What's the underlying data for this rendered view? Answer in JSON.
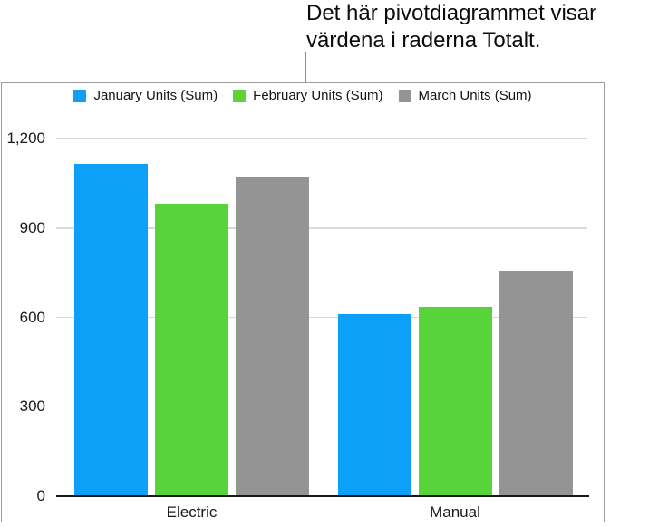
{
  "callout": {
    "line1": "Det här pivotdiagrammet visar",
    "line2": "värdena i raderna Totalt."
  },
  "chart_data": {
    "type": "bar",
    "title": "",
    "categories": [
      "Electric",
      "Manual"
    ],
    "series": [
      {
        "name": "January Units (Sum)",
        "color": "#0ca0f9",
        "values": [
          1115,
          610
        ]
      },
      {
        "name": "February Units (Sum)",
        "color": "#58d339",
        "values": [
          980,
          635
        ]
      },
      {
        "name": "March Units (Sum)",
        "color": "#949494",
        "values": [
          1070,
          755
        ]
      }
    ],
    "ylim": [
      0,
      1200
    ],
    "yticks": [
      0,
      300,
      600,
      900,
      1200
    ],
    "ytick_labels": [
      "0",
      "300",
      "600",
      "900",
      "1,200"
    ],
    "grid": true,
    "legend_position": "top"
  },
  "colors": {
    "axis_line": "#181818",
    "gridline": "#d9d9d9",
    "panel_border": "#9d9d9d",
    "callout_line": "#8f8f8f"
  }
}
